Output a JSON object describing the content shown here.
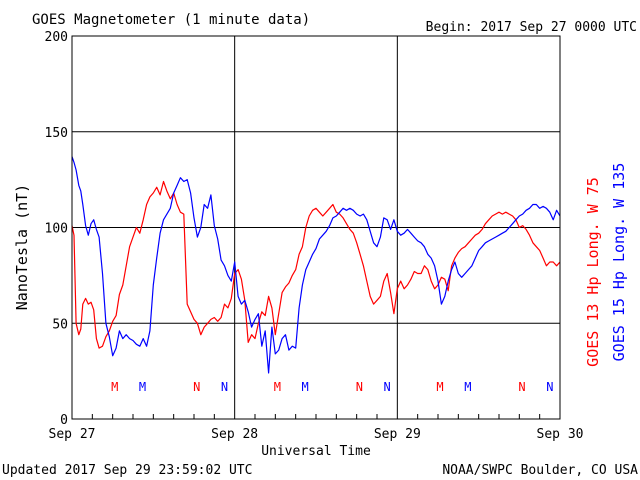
{
  "chart_data": {
    "type": "line",
    "title": "GOES Magnetometer (1 minute data)",
    "begin_label": "Begin:  2017 Sep 27 0000 UTC",
    "xlabel": "Universal Time",
    "ylabel": "NanoTesla (nT)",
    "ylim": [
      0,
      200
    ],
    "xlim": [
      0,
      72
    ],
    "x_units": "hours since 2017 Sep 27 0000 UTC",
    "yticks": [
      0,
      50,
      100,
      150,
      200
    ],
    "xticks": [
      {
        "x": 0,
        "label": "Sep 27"
      },
      {
        "x": 24,
        "label": "Sep 28"
      },
      {
        "x": 48,
        "label": "Sep 29"
      },
      {
        "x": 72,
        "label": "Sep 30"
      }
    ],
    "grid": true,
    "series": [
      {
        "name": "GOES 13 Hp  Long. W 75",
        "color": "#ff0000",
        "points": [
          [
            0,
            101
          ],
          [
            0.3,
            96
          ],
          [
            0.6,
            50
          ],
          [
            1,
            44
          ],
          [
            1.3,
            47
          ],
          [
            1.6,
            60
          ],
          [
            2,
            63
          ],
          [
            2.4,
            60
          ],
          [
            2.8,
            61
          ],
          [
            3.2,
            57
          ],
          [
            3.6,
            42
          ],
          [
            4,
            37
          ],
          [
            4.5,
            38
          ],
          [
            5,
            43
          ],
          [
            5.5,
            46
          ],
          [
            6,
            51
          ],
          [
            6.5,
            54
          ],
          [
            7,
            65
          ],
          [
            7.5,
            70
          ],
          [
            8,
            80
          ],
          [
            8.5,
            90
          ],
          [
            9,
            95
          ],
          [
            9.5,
            100
          ],
          [
            10,
            97
          ],
          [
            10.5,
            104
          ],
          [
            11,
            112
          ],
          [
            11.5,
            116
          ],
          [
            12,
            118
          ],
          [
            12.5,
            121
          ],
          [
            13,
            117
          ],
          [
            13.5,
            124
          ],
          [
            14,
            119
          ],
          [
            14.5,
            115
          ],
          [
            15,
            118
          ],
          [
            15.5,
            112
          ],
          [
            16,
            108
          ],
          [
            16.5,
            107
          ],
          [
            17,
            60
          ],
          [
            17.5,
            56
          ],
          [
            18,
            52
          ],
          [
            18.5,
            50
          ],
          [
            19,
            44
          ],
          [
            19.5,
            48
          ],
          [
            20,
            50
          ],
          [
            20.5,
            52
          ],
          [
            21,
            53
          ],
          [
            21.5,
            51
          ],
          [
            22,
            53
          ],
          [
            22.5,
            60
          ],
          [
            23,
            58
          ],
          [
            23.5,
            63
          ],
          [
            24,
            76
          ],
          [
            24.5,
            78
          ],
          [
            25,
            73
          ],
          [
            25.5,
            62
          ],
          [
            26,
            40
          ],
          [
            26.5,
            44
          ],
          [
            27,
            42
          ],
          [
            27.5,
            50
          ],
          [
            28,
            56
          ],
          [
            28.5,
            54
          ],
          [
            29,
            64
          ],
          [
            29.5,
            58
          ],
          [
            30,
            44
          ],
          [
            30.5,
            55
          ],
          [
            31,
            66
          ],
          [
            31.5,
            69
          ],
          [
            32,
            71
          ],
          [
            32.5,
            75
          ],
          [
            33,
            78
          ],
          [
            33.5,
            86
          ],
          [
            34,
            90
          ],
          [
            34.5,
            100
          ],
          [
            35,
            106
          ],
          [
            35.5,
            109
          ],
          [
            36,
            110
          ],
          [
            36.5,
            108
          ],
          [
            37,
            106
          ],
          [
            37.5,
            108
          ],
          [
            38,
            110
          ],
          [
            38.5,
            112
          ],
          [
            39,
            108
          ],
          [
            39.5,
            107
          ],
          [
            40,
            105
          ],
          [
            40.5,
            102
          ],
          [
            41,
            99
          ],
          [
            41.5,
            97
          ],
          [
            42,
            92
          ],
          [
            42.5,
            86
          ],
          [
            43,
            80
          ],
          [
            43.5,
            72
          ],
          [
            44,
            64
          ],
          [
            44.5,
            60
          ],
          [
            45,
            62
          ],
          [
            45.5,
            64
          ],
          [
            46,
            72
          ],
          [
            46.5,
            76
          ],
          [
            47,
            66
          ],
          [
            47.5,
            55
          ],
          [
            48,
            68
          ],
          [
            48.5,
            72
          ],
          [
            49,
            68
          ],
          [
            49.5,
            70
          ],
          [
            50,
            73
          ],
          [
            50.5,
            77
          ],
          [
            51,
            76
          ],
          [
            51.5,
            76
          ],
          [
            52,
            80
          ],
          [
            52.5,
            78
          ],
          [
            53,
            72
          ],
          [
            53.5,
            68
          ],
          [
            54,
            70
          ],
          [
            54.5,
            74
          ],
          [
            55,
            73
          ],
          [
            55.5,
            67
          ],
          [
            56,
            80
          ],
          [
            56.5,
            84
          ],
          [
            57,
            87
          ],
          [
            57.5,
            89
          ],
          [
            58,
            90
          ],
          [
            58.5,
            92
          ],
          [
            59,
            94
          ],
          [
            59.5,
            96
          ],
          [
            60,
            97
          ],
          [
            60.5,
            99
          ],
          [
            61,
            102
          ],
          [
            61.5,
            104
          ],
          [
            62,
            106
          ],
          [
            62.5,
            107
          ],
          [
            63,
            108
          ],
          [
            63.5,
            107
          ],
          [
            64,
            108
          ],
          [
            64.5,
            107
          ],
          [
            65,
            106
          ],
          [
            65.5,
            104
          ],
          [
            66,
            100
          ],
          [
            66.5,
            101
          ],
          [
            67,
            99
          ],
          [
            67.5,
            96
          ],
          [
            68,
            92
          ],
          [
            68.5,
            90
          ],
          [
            69,
            88
          ],
          [
            69.5,
            84
          ],
          [
            70,
            80
          ],
          [
            70.5,
            82
          ],
          [
            71,
            82
          ],
          [
            71.5,
            80
          ],
          [
            72,
            82
          ]
        ]
      },
      {
        "name": "GOES 15 Hp  Long. W 135",
        "color": "#0000ff",
        "points": [
          [
            0,
            137
          ],
          [
            0.3,
            134
          ],
          [
            0.6,
            130
          ],
          [
            1,
            122
          ],
          [
            1.3,
            119
          ],
          [
            1.6,
            112
          ],
          [
            2,
            101
          ],
          [
            2.4,
            96
          ],
          [
            2.8,
            102
          ],
          [
            3.2,
            104
          ],
          [
            3.6,
            99
          ],
          [
            4,
            95
          ],
          [
            4.5,
            76
          ],
          [
            5,
            50
          ],
          [
            5.5,
            43
          ],
          [
            6,
            33
          ],
          [
            6.5,
            37
          ],
          [
            7,
            46
          ],
          [
            7.5,
            42
          ],
          [
            8,
            44
          ],
          [
            8.5,
            42
          ],
          [
            9,
            41
          ],
          [
            9.5,
            39
          ],
          [
            10,
            38
          ],
          [
            10.5,
            42
          ],
          [
            11,
            38
          ],
          [
            11.5,
            46
          ],
          [
            12,
            70
          ],
          [
            12.5,
            84
          ],
          [
            13,
            97
          ],
          [
            13.5,
            104
          ],
          [
            14,
            107
          ],
          [
            14.5,
            110
          ],
          [
            15,
            118
          ],
          [
            15.5,
            122
          ],
          [
            16,
            126
          ],
          [
            16.5,
            124
          ],
          [
            17,
            125
          ],
          [
            17.5,
            118
          ],
          [
            18,
            105
          ],
          [
            18.5,
            95
          ],
          [
            19,
            100
          ],
          [
            19.5,
            112
          ],
          [
            20,
            110
          ],
          [
            20.5,
            117
          ],
          [
            21,
            101
          ],
          [
            21.5,
            94
          ],
          [
            22,
            83
          ],
          [
            22.5,
            80
          ],
          [
            23,
            75
          ],
          [
            23.5,
            72
          ],
          [
            24,
            82
          ],
          [
            24.5,
            64
          ],
          [
            25,
            60
          ],
          [
            25.5,
            62
          ],
          [
            26,
            56
          ],
          [
            26.5,
            48
          ],
          [
            27,
            52
          ],
          [
            27.5,
            55
          ],
          [
            28,
            38
          ],
          [
            28.5,
            46
          ],
          [
            29,
            24
          ],
          [
            29.5,
            48
          ],
          [
            30,
            34
          ],
          [
            30.5,
            36
          ],
          [
            31,
            42
          ],
          [
            31.5,
            44
          ],
          [
            32,
            36
          ],
          [
            32.5,
            38
          ],
          [
            33,
            37
          ],
          [
            33.5,
            58
          ],
          [
            34,
            70
          ],
          [
            34.5,
            78
          ],
          [
            35,
            82
          ],
          [
            35.5,
            86
          ],
          [
            36,
            89
          ],
          [
            36.5,
            94
          ],
          [
            37,
            96
          ],
          [
            37.5,
            98
          ],
          [
            38,
            101
          ],
          [
            38.5,
            105
          ],
          [
            39,
            106
          ],
          [
            39.5,
            108
          ],
          [
            40,
            110
          ],
          [
            40.5,
            109
          ],
          [
            41,
            110
          ],
          [
            41.5,
            109
          ],
          [
            42,
            107
          ],
          [
            42.5,
            106
          ],
          [
            43,
            107
          ],
          [
            43.5,
            104
          ],
          [
            44,
            98
          ],
          [
            44.5,
            92
          ],
          [
            45,
            90
          ],
          [
            45.5,
            95
          ],
          [
            46,
            105
          ],
          [
            46.5,
            104
          ],
          [
            47,
            99
          ],
          [
            47.5,
            104
          ],
          [
            48,
            98
          ],
          [
            48.5,
            96
          ],
          [
            49,
            97
          ],
          [
            49.5,
            99
          ],
          [
            50,
            97
          ],
          [
            50.5,
            95
          ],
          [
            51,
            93
          ],
          [
            51.5,
            92
          ],
          [
            52,
            90
          ],
          [
            52.5,
            86
          ],
          [
            53,
            84
          ],
          [
            53.5,
            80
          ],
          [
            54,
            72
          ],
          [
            54.5,
            60
          ],
          [
            55,
            64
          ],
          [
            55.5,
            72
          ],
          [
            56,
            78
          ],
          [
            56.5,
            82
          ],
          [
            57,
            76
          ],
          [
            57.5,
            74
          ],
          [
            58,
            76
          ],
          [
            58.5,
            78
          ],
          [
            59,
            80
          ],
          [
            59.5,
            84
          ],
          [
            60,
            88
          ],
          [
            60.5,
            90
          ],
          [
            61,
            92
          ],
          [
            61.5,
            93
          ],
          [
            62,
            94
          ],
          [
            62.5,
            95
          ],
          [
            63,
            96
          ],
          [
            63.5,
            97
          ],
          [
            64,
            98
          ],
          [
            64.5,
            100
          ],
          [
            65,
            102
          ],
          [
            65.5,
            104
          ],
          [
            66,
            106
          ],
          [
            66.5,
            107
          ],
          [
            67,
            109
          ],
          [
            67.5,
            110
          ],
          [
            68,
            112
          ],
          [
            68.5,
            112
          ],
          [
            69,
            110
          ],
          [
            69.5,
            111
          ],
          [
            70,
            110
          ],
          [
            70.5,
            108
          ],
          [
            71,
            104
          ],
          [
            71.5,
            109
          ],
          [
            72,
            106
          ]
        ]
      }
    ],
    "markers": [
      {
        "label": "M",
        "x": 6.3,
        "color": "#ff0000"
      },
      {
        "label": "M",
        "x": 10.4,
        "color": "#0000ff"
      },
      {
        "label": "N",
        "x": 18.4,
        "color": "#ff0000"
      },
      {
        "label": "N",
        "x": 22.5,
        "color": "#0000ff"
      },
      {
        "label": "M",
        "x": 30.3,
        "color": "#ff0000"
      },
      {
        "label": "M",
        "x": 34.4,
        "color": "#0000ff"
      },
      {
        "label": "N",
        "x": 42.4,
        "color": "#ff0000"
      },
      {
        "label": "N",
        "x": 46.5,
        "color": "#0000ff"
      },
      {
        "label": "M",
        "x": 54.3,
        "color": "#ff0000"
      },
      {
        "label": "M",
        "x": 58.4,
        "color": "#0000ff"
      },
      {
        "label": "N",
        "x": 66.4,
        "color": "#ff0000"
      },
      {
        "label": "N",
        "x": 70.5,
        "color": "#0000ff"
      }
    ]
  },
  "footer": {
    "updated": "Updated 2017 Sep 29 23:59:02 UTC",
    "credit": "NOAA/SWPC Boulder, CO USA"
  }
}
